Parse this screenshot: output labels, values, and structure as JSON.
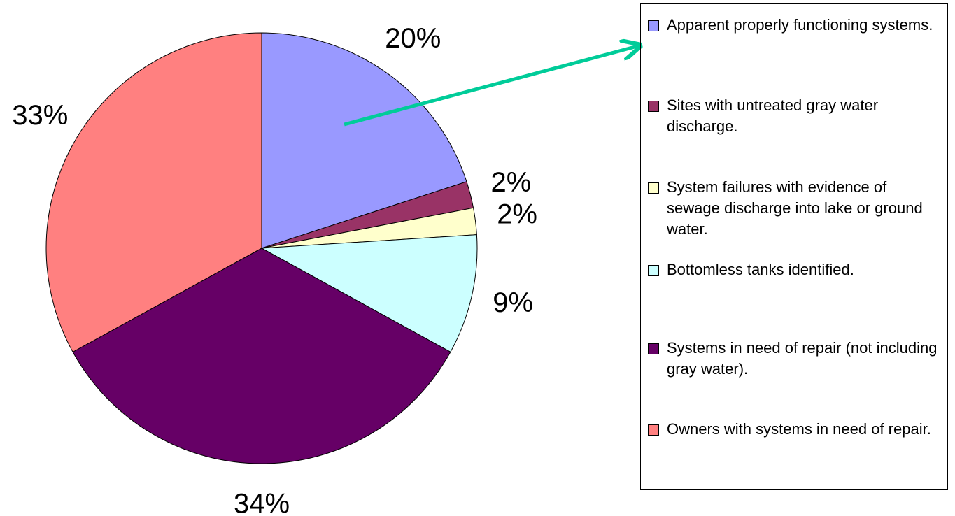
{
  "chart_data": {
    "type": "pie",
    "categories": [
      "Apparent properly functioning systems.",
      "Sites with untreated gray water discharge.",
      "System failures with evidence of sewage discharge into lake or ground water.",
      "Bottomless tanks identified.",
      "Systems in need of repair (not including gray water).",
      "Owners with systems in need of repair."
    ],
    "values": [
      20,
      2,
      2,
      9,
      34,
      33
    ],
    "value_labels": [
      "20%",
      "2%",
      "2%",
      "9%",
      "34%",
      "33%"
    ],
    "colors": [
      "#9999ff",
      "#993366",
      "#ffffcc",
      "#ccffff",
      "#660066",
      "#ff8080"
    ]
  }
}
